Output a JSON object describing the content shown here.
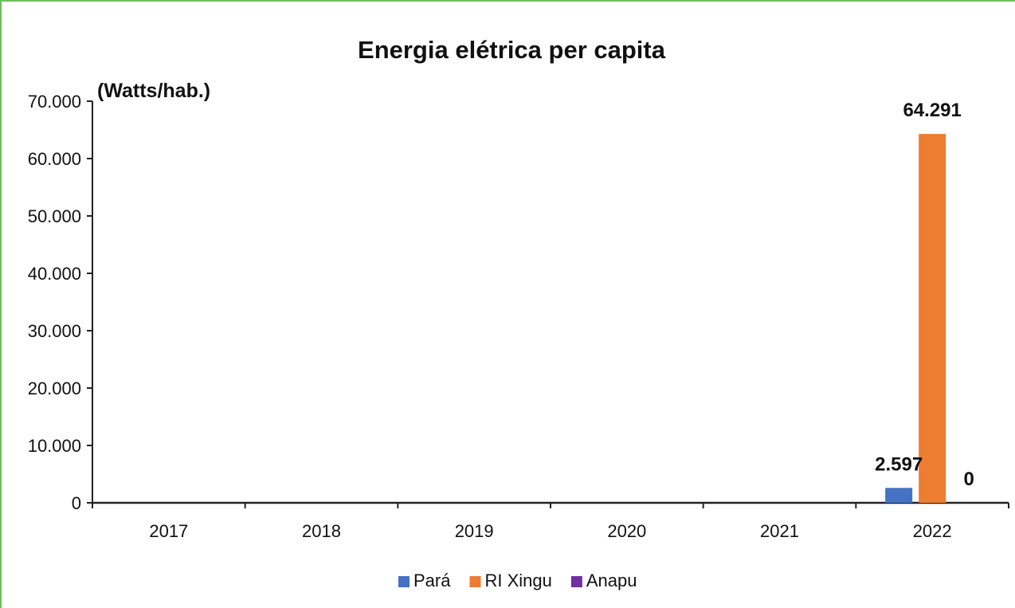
{
  "chart_data": {
    "type": "bar",
    "title": "Energia elétrica per capita",
    "unit_label": "(Watts/hab.)",
    "xlabel": "",
    "ylabel": "",
    "categories": [
      "2017",
      "2018",
      "2019",
      "2020",
      "2021",
      "2022"
    ],
    "ylim": [
      0,
      70000
    ],
    "yticks": [
      0,
      10000,
      20000,
      30000,
      40000,
      50000,
      60000,
      70000
    ],
    "ytick_labels": [
      "0",
      "10.000",
      "20.000",
      "30.000",
      "40.000",
      "50.000",
      "60.000",
      "70.000"
    ],
    "grid": false,
    "legend_position": "bottom",
    "series": [
      {
        "name": "Pará",
        "color": "#4472c4",
        "values": [
          null,
          null,
          null,
          null,
          null,
          2597
        ],
        "labels": [
          "",
          "",
          "",
          "",
          "",
          "2.597"
        ]
      },
      {
        "name": "RI Xingu",
        "color": "#ed7d31",
        "values": [
          null,
          null,
          null,
          null,
          null,
          64291
        ],
        "labels": [
          "",
          "",
          "",
          "",
          "",
          "64.291"
        ]
      },
      {
        "name": "Anapu",
        "color": "#7030a0",
        "values": [
          null,
          null,
          null,
          null,
          null,
          0
        ],
        "labels": [
          "",
          "",
          "",
          "",
          "",
          "0"
        ]
      }
    ]
  }
}
